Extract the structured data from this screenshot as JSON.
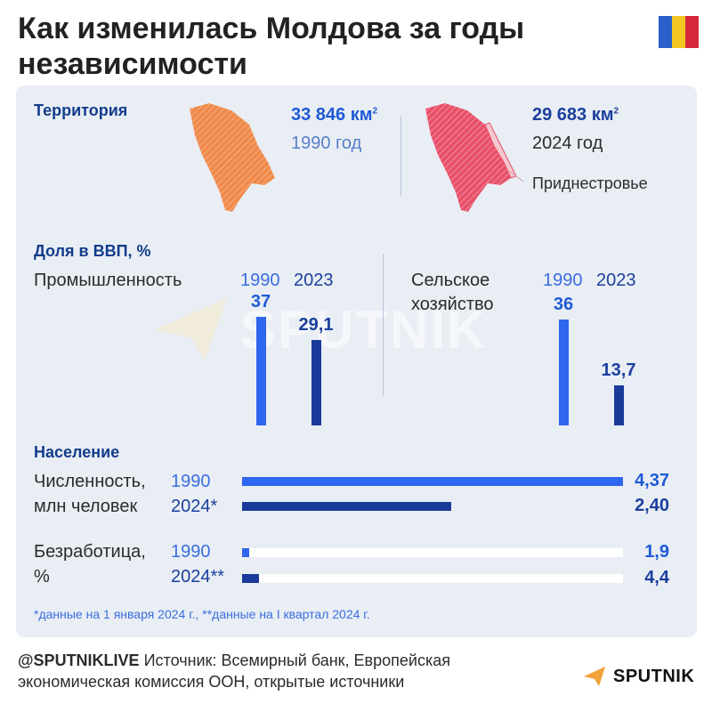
{
  "title": "Как изменилась Молдова за годы независимости",
  "flag_colors": [
    "#2b5fc9",
    "#f3c623",
    "#d6283a"
  ],
  "territory": {
    "heading": "Территория",
    "left": {
      "area": "33 846 км",
      "sup": "2",
      "year": "1990 год"
    },
    "right": {
      "area": "29 683 км",
      "sup": "2",
      "year": "2024 год",
      "note": "Приднестровье"
    }
  },
  "gdp": {
    "heading": "Доля в ВВП, %",
    "industry_label": "Промышленность",
    "agri_label_1": "Сельское",
    "agri_label_2": "хозяйство",
    "year1": "1990",
    "year2": "2023"
  },
  "population": {
    "heading": "Население",
    "count_label_1": "Численность,",
    "count_label_2": "млн человек",
    "count_year1": "1990",
    "count_year2": "2024*",
    "unemp_label_1": "Безработица,",
    "unemp_label_2": "%",
    "unemp_year1": "1990",
    "unemp_year2": "2024**"
  },
  "footnote": "*данные на 1 января 2024 г., **данные на I квартал 2024 г.",
  "footer": {
    "handle": "@SPUTNIKLIVE",
    "source": "Источник:  Всемирный банк, Европейская экономическая комиссия ООН, открытые источники",
    "logo": "SPUTNIK",
    "watermark": "SPUTNIK"
  },
  "colors": {
    "light_blue": "#2f66ee",
    "dark_blue": "#1a3a9a",
    "map_orange": "#f08a4b"
  },
  "chart_data": [
    {
      "type": "bar",
      "title": "Промышленность",
      "categories": [
        "1990",
        "2023"
      ],
      "values": [
        37,
        29.1
      ],
      "labels": [
        "37",
        "29,1"
      ]
    },
    {
      "type": "bar",
      "title": "Сельское хозяйство",
      "categories": [
        "1990",
        "2023"
      ],
      "values": [
        36,
        13.7
      ],
      "labels": [
        "36",
        "13,7"
      ]
    },
    {
      "type": "bar",
      "title": "Численность, млн человек",
      "categories": [
        "1990",
        "2024*"
      ],
      "values": [
        4.37,
        2.4
      ],
      "labels": [
        "4,37",
        "2,40"
      ]
    },
    {
      "type": "bar",
      "title": "Безработица, %",
      "categories": [
        "1990",
        "2024**"
      ],
      "values": [
        1.9,
        4.4
      ],
      "labels": [
        "1,9",
        "4,4"
      ]
    }
  ]
}
